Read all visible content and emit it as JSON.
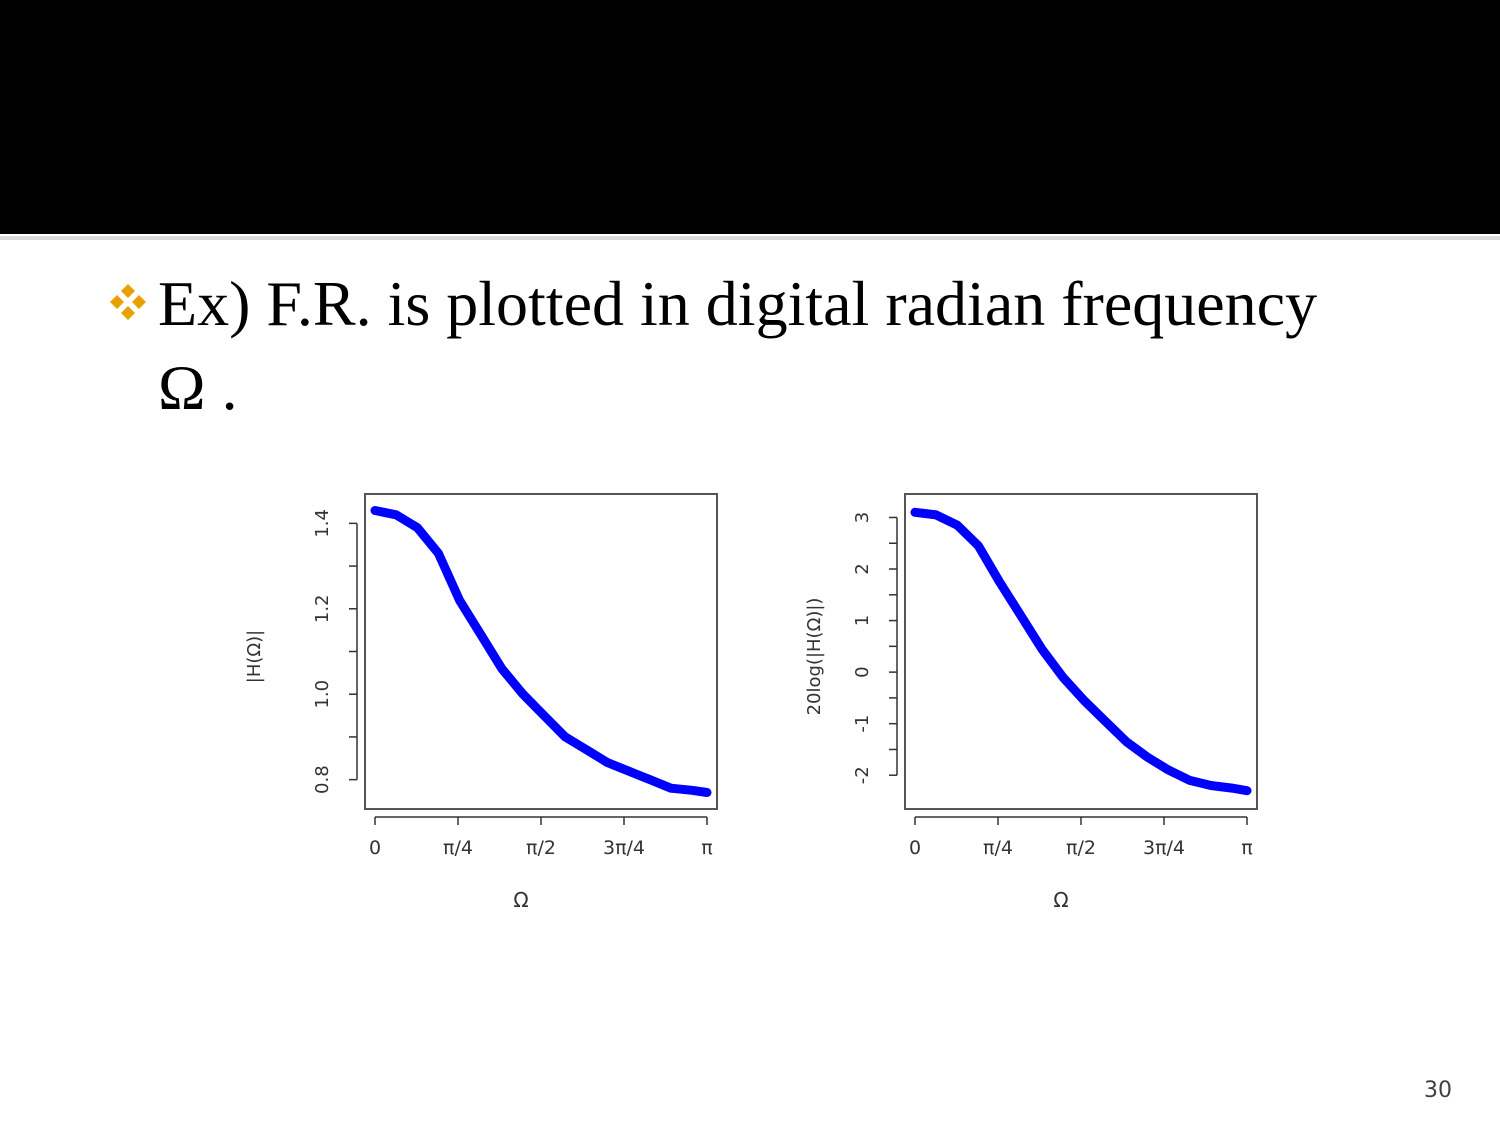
{
  "slide": {
    "bullet_text_line1": "Ex) F.R. is plotted in digital radian frequency",
    "bullet_text_line2": "Ω .",
    "bullet_icon": "diamond-cluster-icon",
    "bullet_color": "#e8a200",
    "page_number": "30"
  },
  "chart_data": [
    {
      "type": "line",
      "xlabel": "Ω",
      "ylabel": "|H(Ω)|",
      "xlim": [
        0,
        3.14159
      ],
      "ylim": [
        0.75,
        1.45
      ],
      "x_ticks": [
        0,
        0.7854,
        1.5708,
        2.3562,
        3.14159
      ],
      "x_tick_labels": [
        "0",
        "π/4",
        "π/2",
        "3π/4",
        "π"
      ],
      "y_ticks": [
        0.8,
        1.0,
        1.2,
        1.4
      ],
      "y_tick_labels": [
        "0.8",
        "1.0",
        "1.2",
        "1.4"
      ],
      "series": [
        {
          "color": "#0000ff",
          "x": [
            0,
            0.2,
            0.4,
            0.6,
            0.8,
            1.0,
            1.2,
            1.4,
            1.6,
            1.8,
            2.0,
            2.2,
            2.4,
            2.6,
            2.8,
            3.0,
            3.14159
          ],
          "y": [
            1.43,
            1.42,
            1.39,
            1.33,
            1.22,
            1.14,
            1.06,
            1.0,
            0.95,
            0.9,
            0.87,
            0.84,
            0.82,
            0.8,
            0.78,
            0.775,
            0.77
          ]
        }
      ],
      "grid": false
    },
    {
      "type": "line",
      "xlabel": "Ω",
      "ylabel": "20log(|H(Ω)|)",
      "xlim": [
        0,
        3.14159
      ],
      "ylim": [
        -2.5,
        3.3
      ],
      "x_ticks": [
        0,
        0.7854,
        1.5708,
        2.3562,
        3.14159
      ],
      "x_tick_labels": [
        "0",
        "π/4",
        "π/2",
        "3π/4",
        "π"
      ],
      "y_ticks": [
        -2,
        -1,
        0,
        1,
        2,
        3
      ],
      "y_tick_labels": [
        "-2",
        "-1",
        "0",
        "1",
        "2",
        "3"
      ],
      "series": [
        {
          "color": "#0000ff",
          "x": [
            0,
            0.2,
            0.4,
            0.6,
            0.8,
            1.0,
            1.2,
            1.4,
            1.6,
            1.8,
            2.0,
            2.2,
            2.4,
            2.6,
            2.8,
            3.0,
            3.14159
          ],
          "y": [
            3.1,
            3.05,
            2.85,
            2.45,
            1.75,
            1.1,
            0.45,
            -0.1,
            -0.55,
            -0.95,
            -1.35,
            -1.65,
            -1.9,
            -2.1,
            -2.2,
            -2.25,
            -2.3
          ]
        }
      ],
      "grid": false
    }
  ]
}
